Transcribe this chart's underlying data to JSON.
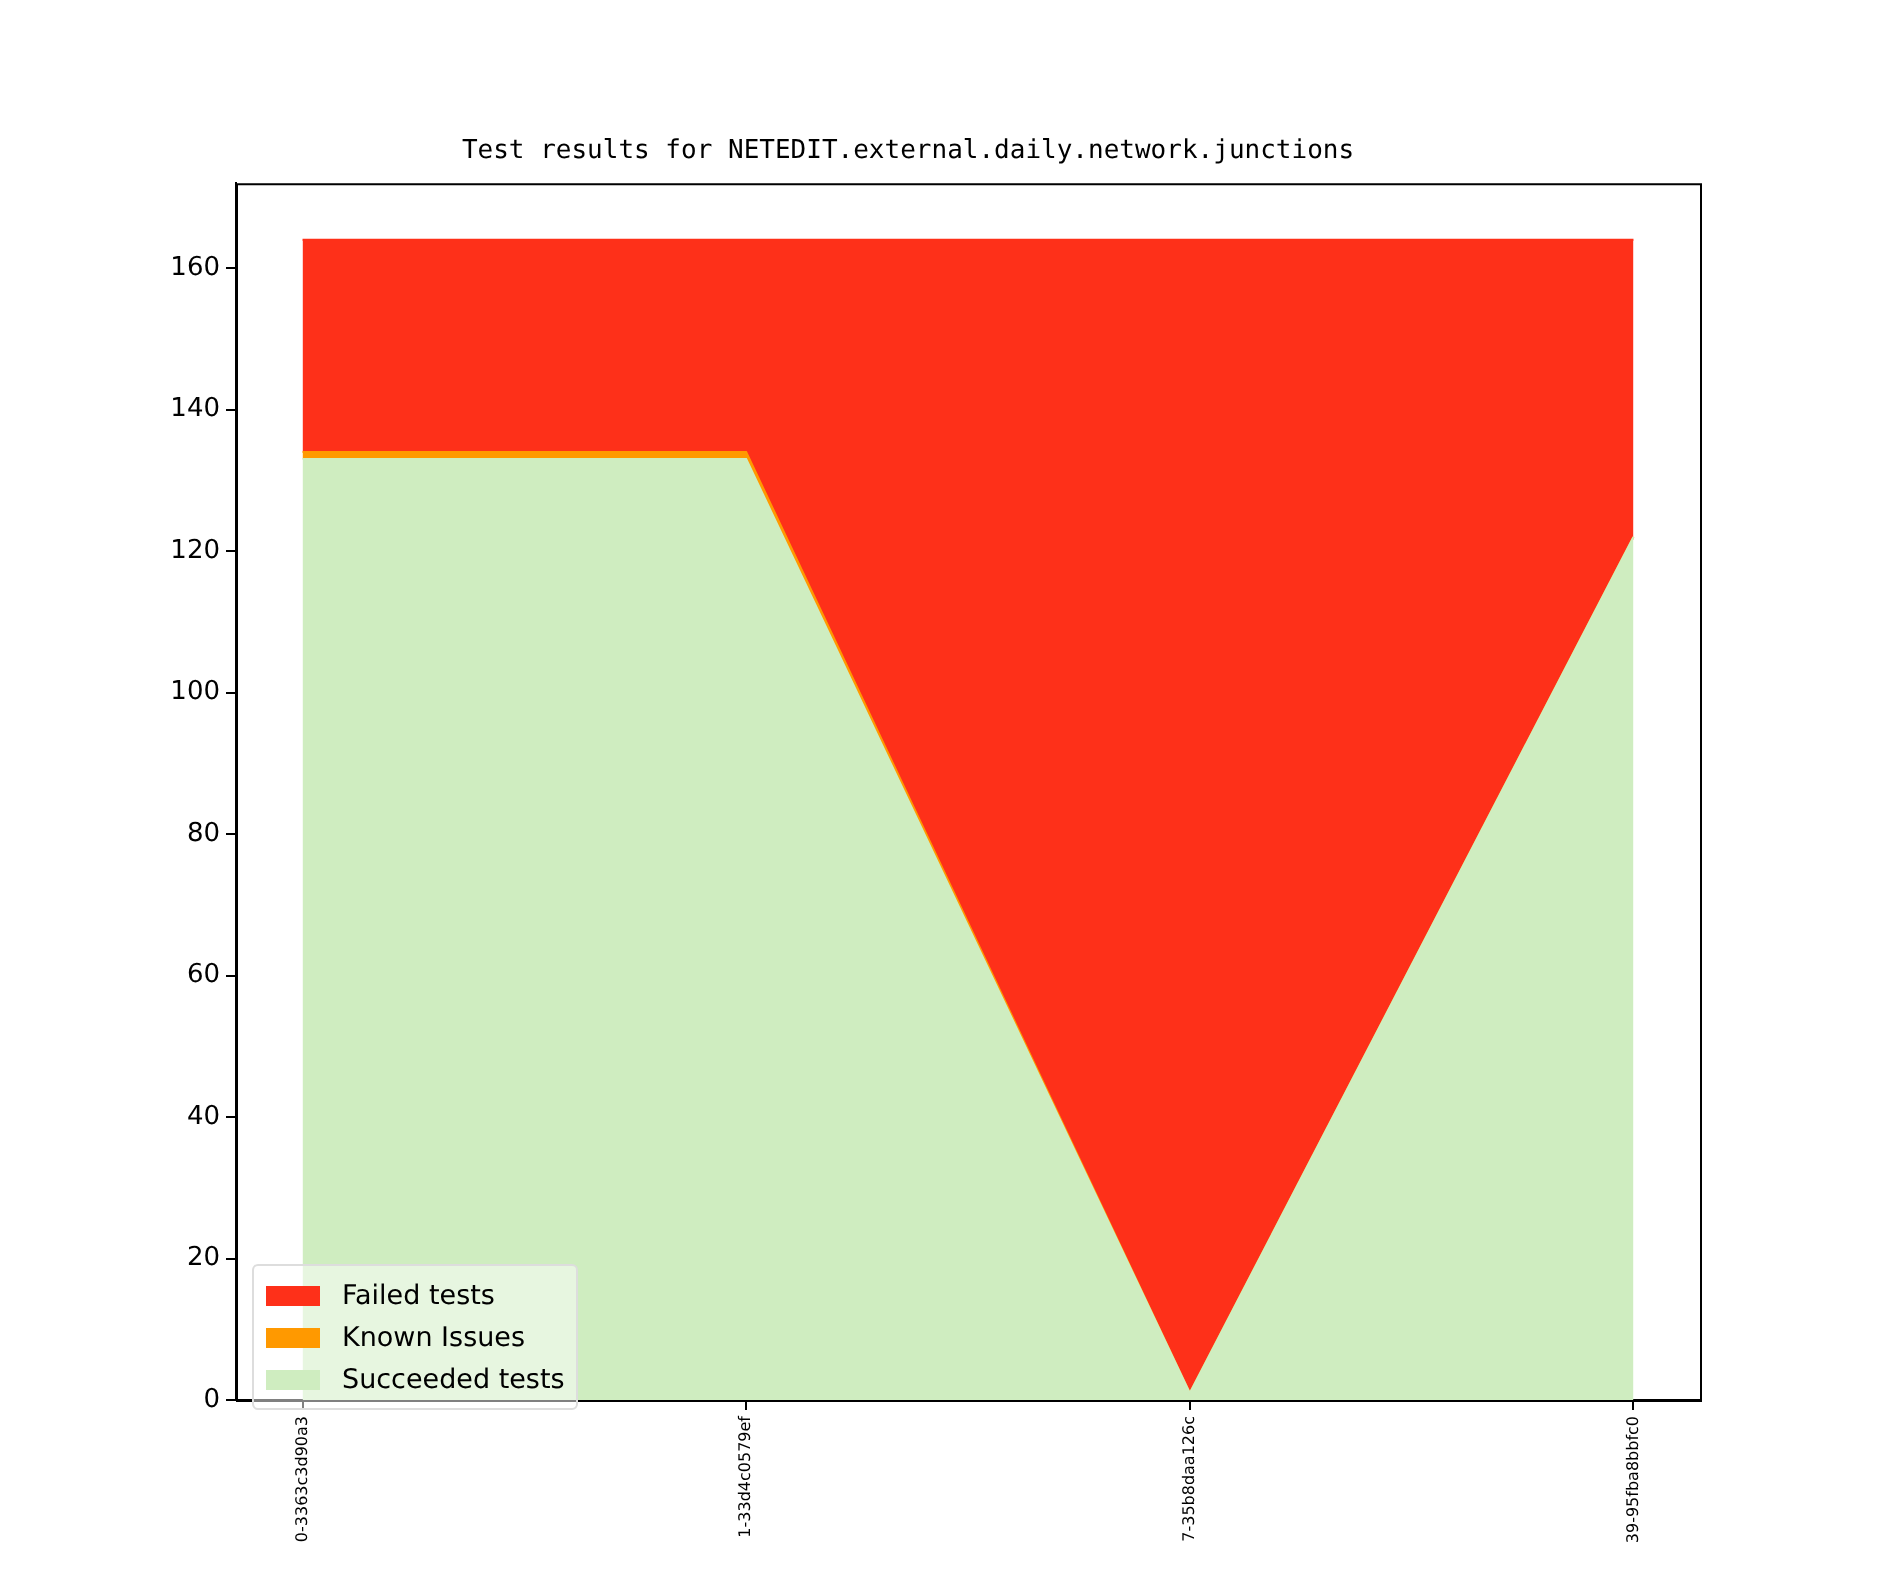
{
  "chart_data": {
    "type": "area",
    "title": "Test results for NETEDIT.external.daily.network.junctions",
    "categories": [
      "0-3363c3d90a3",
      "1-33d4c0579ef",
      "7-35b8daa126c",
      "39-95fba8bbfc0"
    ],
    "stacked": true,
    "series": [
      {
        "name": "Succeeded tests",
        "color": "#cfedc0",
        "values": [
          133,
          133,
          1,
          122
        ]
      },
      {
        "name": "Known Issues",
        "color": "#ff9900",
        "values": [
          1,
          1,
          0,
          0
        ]
      },
      {
        "name": "Failed tests",
        "color": "#fe3019",
        "values": [
          30,
          30,
          163,
          42
        ]
      }
    ],
    "ylim": [
      0,
      172
    ],
    "yticks": [
      0,
      20,
      40,
      60,
      80,
      100,
      120,
      140,
      160
    ],
    "legend": "bottom left",
    "grid": false
  }
}
